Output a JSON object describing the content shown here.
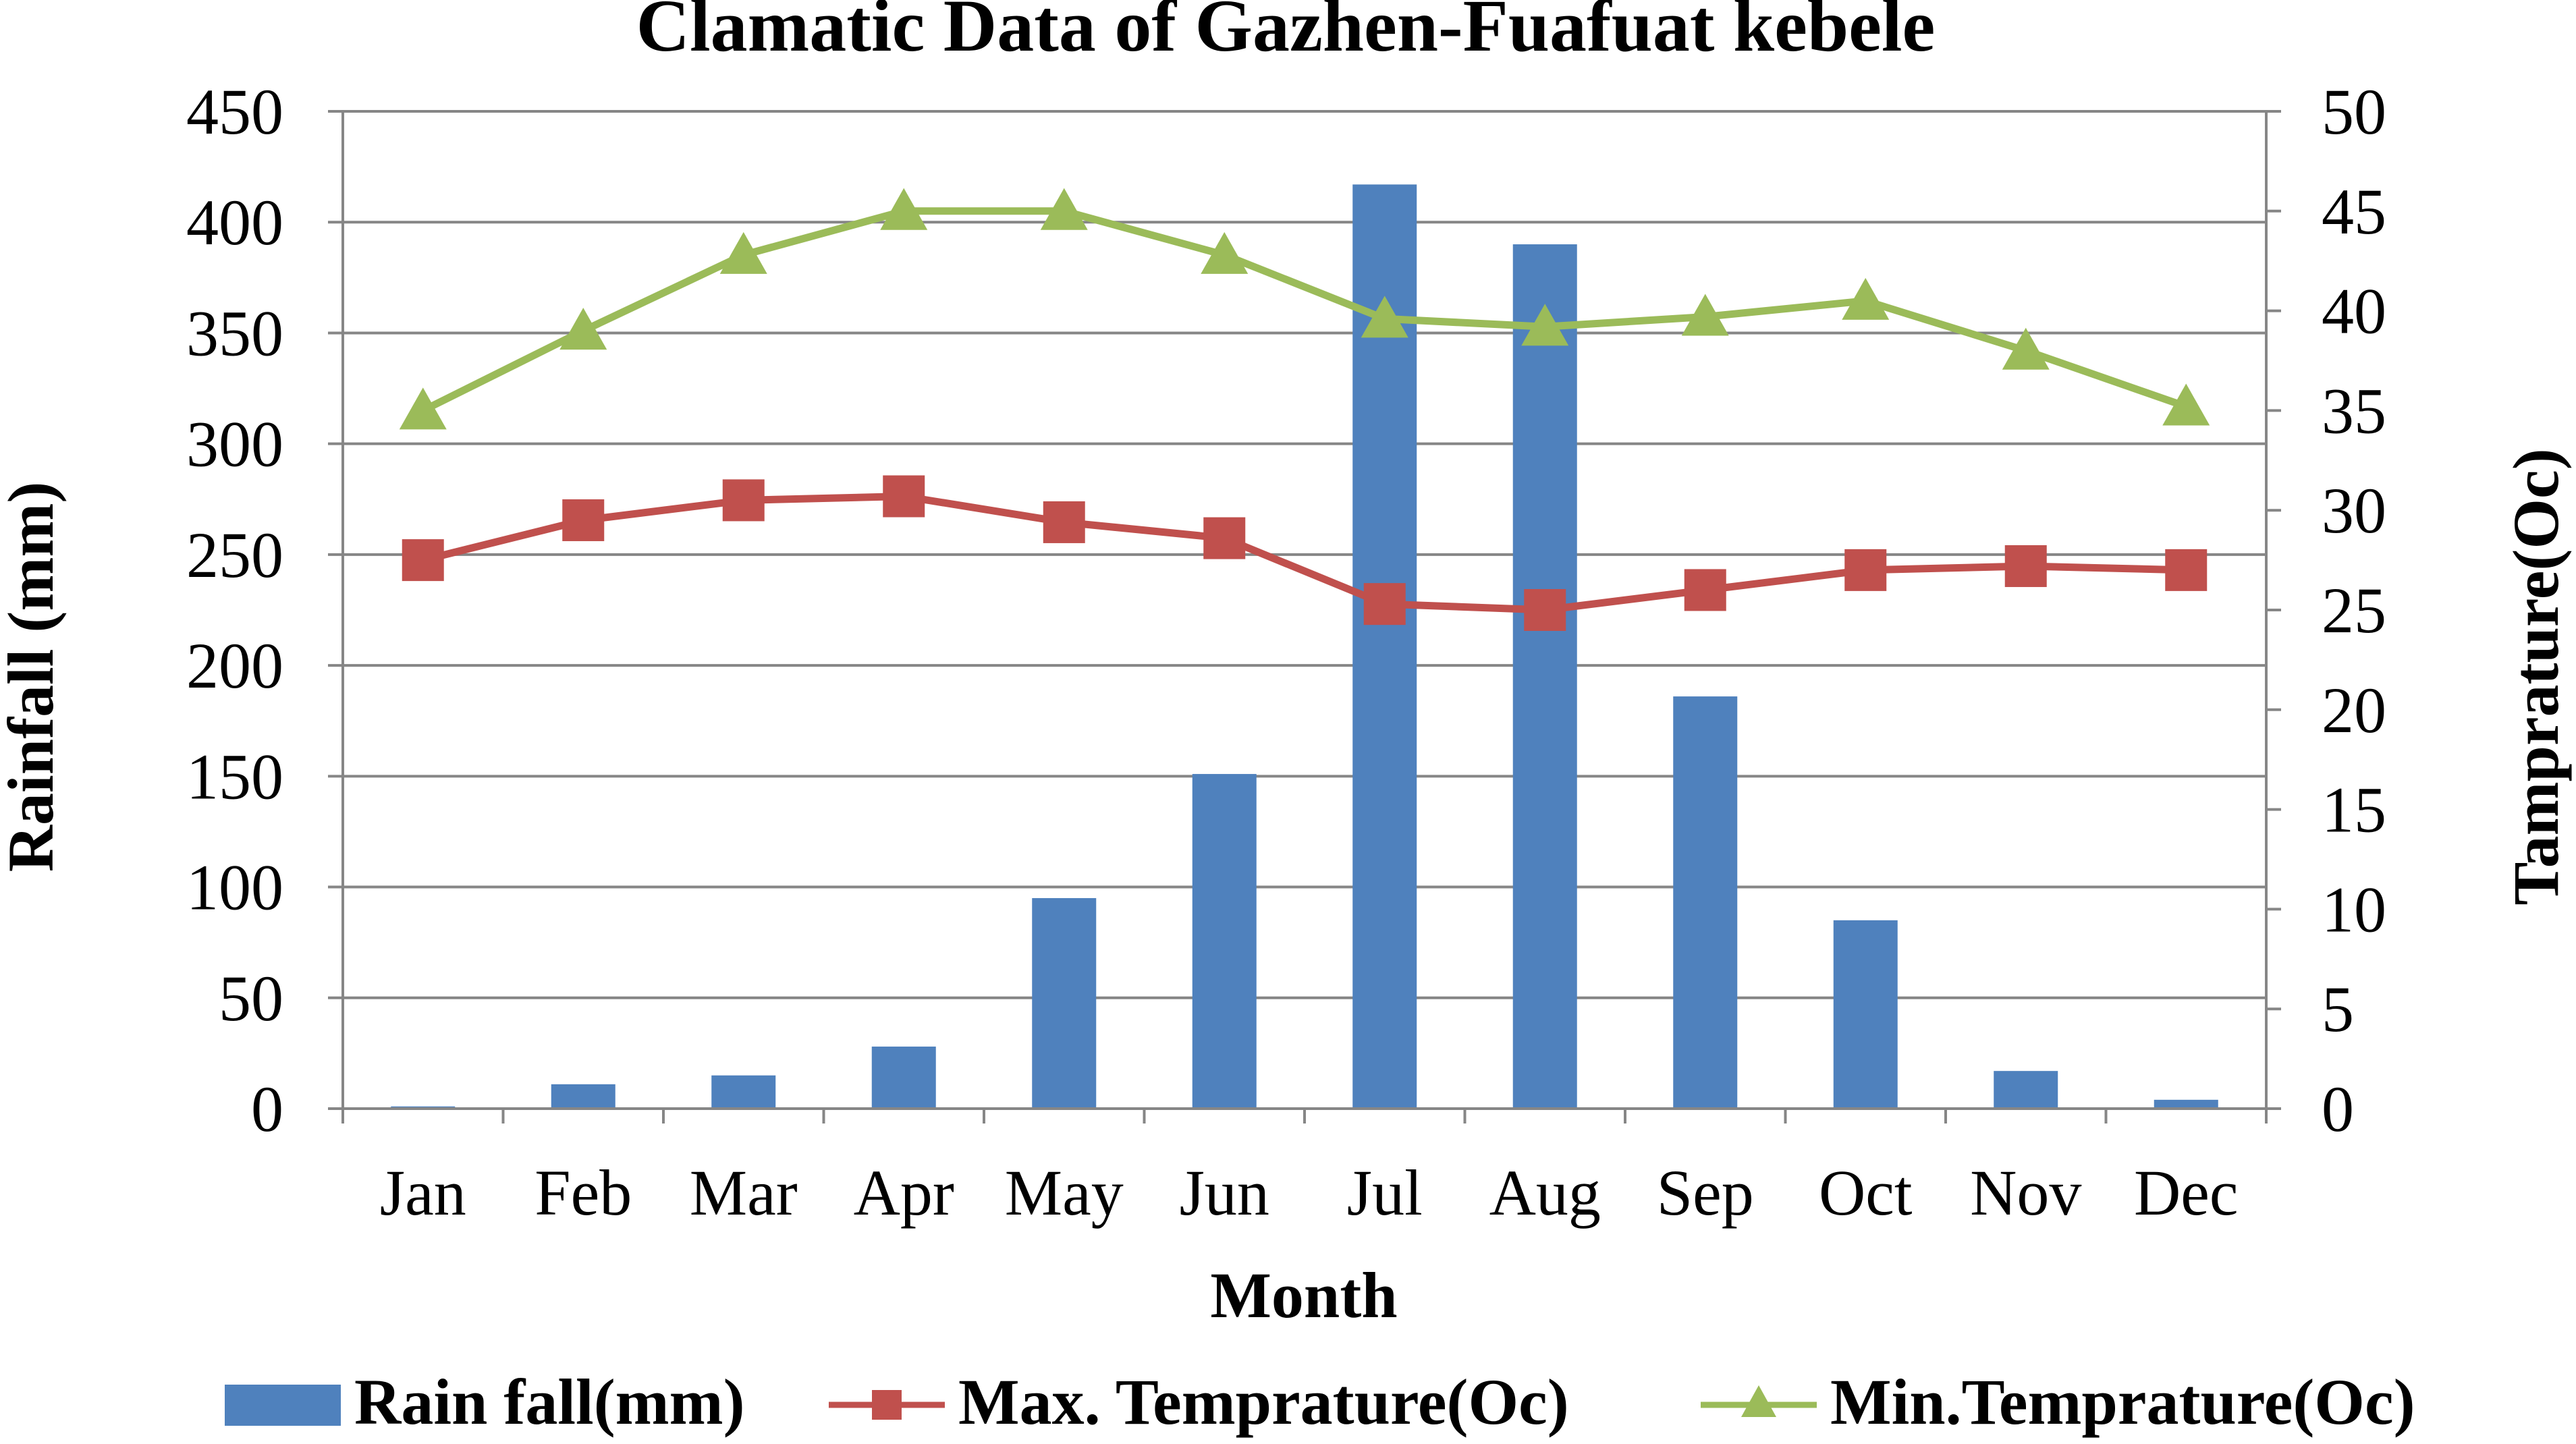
{
  "chart_data": {
    "type": "bar",
    "title": "Clamatic Data of Gazhen-Fuafuat kebele",
    "xlabel": "Month",
    "ylabel": "Rainfall (mm)",
    "y2label": "Tamprature(Oc)",
    "categories": [
      "Jan",
      "Feb",
      "Mar",
      "Apr",
      "May",
      "Jun",
      "Jul",
      "Aug",
      "Sep",
      "Oct",
      "Nov",
      "Dec"
    ],
    "ylim": [
      0,
      450
    ],
    "yticks": [
      "0",
      "50",
      "100",
      "150",
      "200",
      "250",
      "300",
      "350",
      "400",
      "450"
    ],
    "y2lim": [
      0,
      50
    ],
    "y2ticks": [
      "0",
      "5",
      "10",
      "15",
      "20",
      "25",
      "30",
      "35",
      "40",
      "45",
      "50"
    ],
    "grid": true,
    "legend_position": "bottom",
    "series": [
      {
        "name": "Rain fall(mm)",
        "type": "bar",
        "axis": "left",
        "color": "#4F81BD",
        "values": [
          1,
          11,
          15,
          28,
          95,
          151,
          417,
          390,
          186,
          85,
          17,
          4
        ]
      },
      {
        "name": "Max. Temprature(Oc)",
        "type": "line",
        "marker": "square",
        "axis": "right",
        "color": "#C0504D",
        "values": [
          27.5,
          29.5,
          30.5,
          30.7,
          29.4,
          28.6,
          25.3,
          25.0,
          26.0,
          27.0,
          27.2,
          27.0
        ]
      },
      {
        "name": "Min.Temprature(Oc)",
        "type": "line",
        "marker": "triangle",
        "axis": "right",
        "color": "#9BBB59",
        "values": [
          35.0,
          39.0,
          42.8,
          45.0,
          45.0,
          42.8,
          39.6,
          39.2,
          39.7,
          40.5,
          38.0,
          35.2
        ]
      }
    ]
  }
}
